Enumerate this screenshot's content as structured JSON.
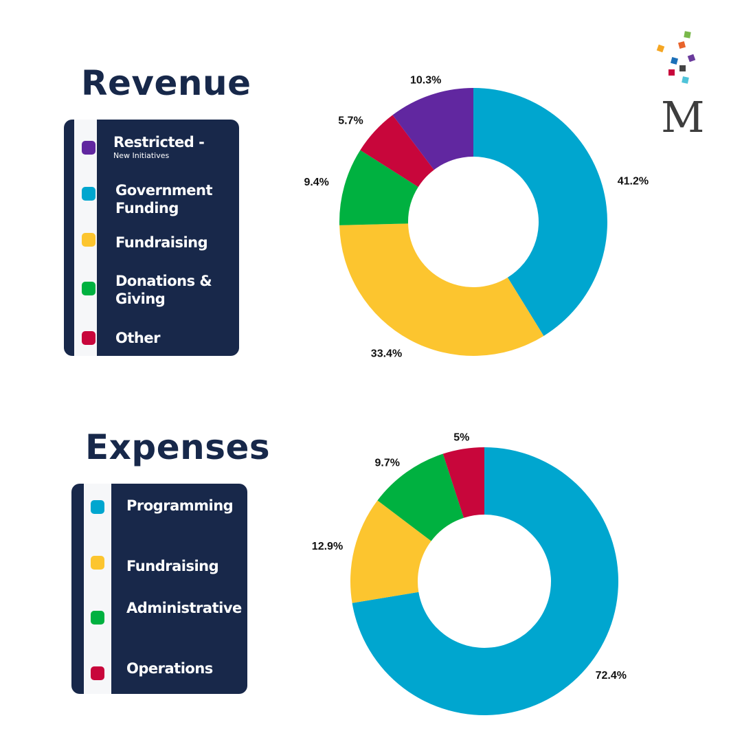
{
  "colors": {
    "title": "#17284a",
    "legend_bg": "#18284a",
    "legend_strip": "#f6f7f9",
    "blue": "#00a6cf",
    "yellow": "#fcc52f",
    "green": "#00b140",
    "red": "#c8063b",
    "purple": "#6127a0"
  },
  "logo": {
    "letter": "M",
    "icon": "m-logo-with-confetti-squares"
  },
  "revenue": {
    "title": "Revenue",
    "legend": [
      {
        "label": "Restricted -",
        "sublabel": "New Initiatives",
        "color": "#6127a0",
        "icon": "purple-square"
      },
      {
        "label": "Government Funding",
        "color": "#00a6cf",
        "icon": "blue-square"
      },
      {
        "label": "Fundraising",
        "color": "#fcc52f",
        "icon": "yellow-square"
      },
      {
        "label": "Donations & Giving",
        "color": "#00b140",
        "icon": "green-square"
      },
      {
        "label": "Other",
        "color": "#c8063b",
        "icon": "red-square"
      }
    ]
  },
  "expenses": {
    "title": "Expenses",
    "legend": [
      {
        "label": "Programming",
        "color": "#00a6cf",
        "icon": "blue-square"
      },
      {
        "label": "Fundraising",
        "color": "#fcc52f",
        "icon": "yellow-square"
      },
      {
        "label": "Administrative",
        "color": "#00b140",
        "icon": "green-square"
      },
      {
        "label": "Operations",
        "color": "#c8063b",
        "icon": "red-square"
      }
    ]
  },
  "chart_data": [
    {
      "type": "pie",
      "title": "Revenue",
      "donut": true,
      "start": "12 o'clock",
      "direction": "clockwise",
      "slices": [
        {
          "name": "Government Funding",
          "value": 41.2,
          "label": "41.2%",
          "color": "#00a6cf"
        },
        {
          "name": "Fundraising",
          "value": 33.4,
          "label": "33.4%",
          "color": "#fcc52f"
        },
        {
          "name": "Donations & Giving",
          "value": 9.4,
          "label": "9.4%",
          "color": "#00b140"
        },
        {
          "name": "Other",
          "value": 5.7,
          "label": "5.7%",
          "color": "#c8063b"
        },
        {
          "name": "Restricted - New Initiatives",
          "value": 10.3,
          "label": "10.3%",
          "color": "#6127a0"
        }
      ]
    },
    {
      "type": "pie",
      "title": "Expenses",
      "donut": true,
      "start": "12 o'clock",
      "direction": "clockwise",
      "slices": [
        {
          "name": "Programming",
          "value": 72.4,
          "label": "72.4%",
          "color": "#00a6cf"
        },
        {
          "name": "Fundraising",
          "value": 12.9,
          "label": "12.9%",
          "color": "#fcc52f"
        },
        {
          "name": "Administrative",
          "value": 9.7,
          "label": "9.7%",
          "color": "#00b140"
        },
        {
          "name": "Operations",
          "value": 5,
          "label": "5%",
          "color": "#c8063b"
        }
      ]
    }
  ]
}
